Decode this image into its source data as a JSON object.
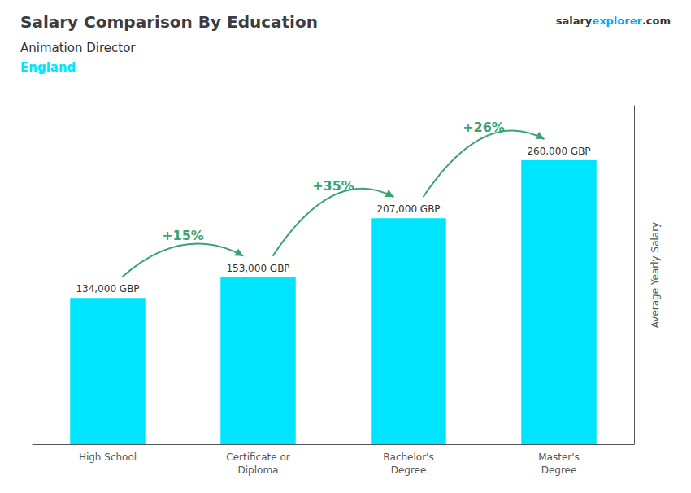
{
  "chart_data": {
    "type": "bar",
    "title": "Salary Comparison By Education",
    "subtitle": [
      "Animation Director",
      "England"
    ],
    "ylabel": "Average Yearly Salary",
    "categories": [
      "High School",
      "Certificate or\nDiploma",
      "Bachelor's\nDegree",
      "Master's\nDegree"
    ],
    "values": [
      134000,
      153000,
      207000,
      260000
    ],
    "value_labels": [
      "134,000 GBP",
      "153,000 GBP",
      "207,000 GBP",
      "260,000 GBP"
    ],
    "data_labels": true,
    "color": "#00e5ff",
    "ylim": [
      0,
      310000
    ],
    "tick_labels": "x",
    "grid": false,
    "annotations": [
      {
        "text": "+15%",
        "from": "High School",
        "to": "Certificate or\nDiploma"
      },
      {
        "text": "+35%",
        "from": "Certificate or\nDiploma",
        "to": "Bachelor's\nDegree"
      },
      {
        "text": "+26%",
        "from": "Bachelor's\nDegree",
        "to": "Master's\nDegree"
      },
      {
        "text": "salary"
      },
      {
        "text": "explorer"
      },
      {
        "text": ".com"
      }
    ]
  }
}
